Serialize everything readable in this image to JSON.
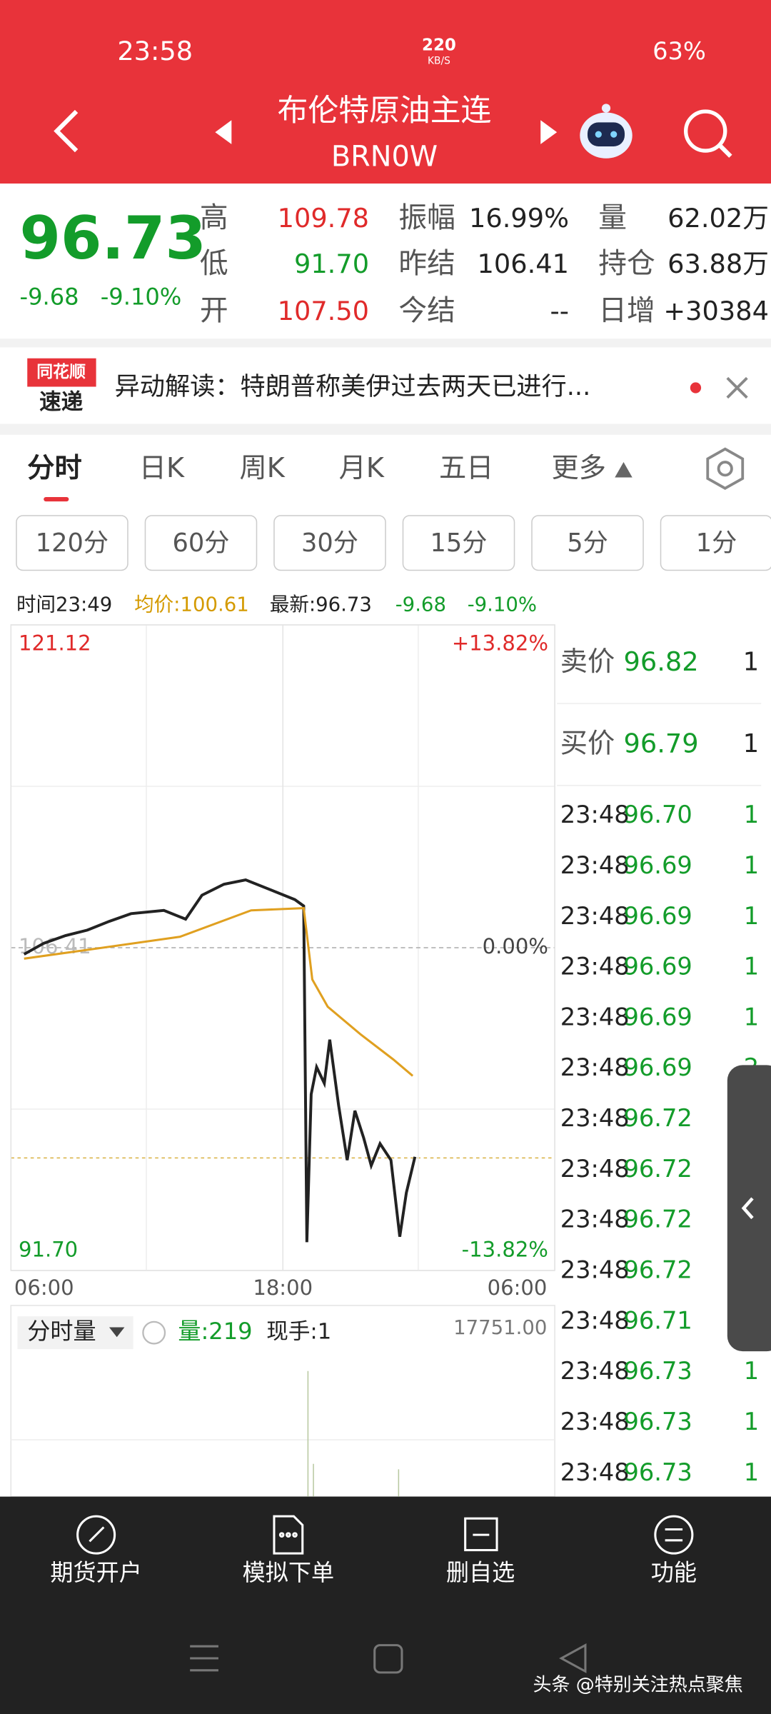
{
  "status": {
    "time": "23:58",
    "speed": "220",
    "speed_unit": "KB/S",
    "battery": "63%"
  },
  "header": {
    "title": "布伦特原油主连",
    "code": "BRN0W"
  },
  "quote": {
    "price": "96.73",
    "change": "-9.68",
    "change_pct": "-9.10%"
  },
  "stats": [
    [
      {
        "label": "高",
        "value": "109.78"
      },
      {
        "label": "振幅",
        "value": "16.99%"
      },
      {
        "label": "量",
        "value": "62.02万"
      }
    ],
    [
      {
        "label": "低",
        "value": "91.70"
      },
      {
        "label": "昨结",
        "value": "106.41"
      },
      {
        "label": "持仓",
        "value": "63.88万"
      }
    ],
    [
      {
        "label": "开",
        "value": "107.50"
      },
      {
        "label": "今结",
        "value": "--"
      },
      {
        "label": "日增",
        "value": "+30384"
      }
    ]
  ],
  "news": {
    "logo_top": "同花顺",
    "logo_bottom": "速递",
    "text": "异动解读：特朗普称美伊过去两天已进行..."
  },
  "tabs": [
    "分时",
    "日K",
    "周K",
    "月K",
    "五日",
    "更多"
  ],
  "periods": [
    "120分",
    "60分",
    "30分",
    "15分",
    "5分",
    "1分"
  ],
  "info_bar": {
    "time": "时间23:49",
    "avg": "均价:100.61",
    "latest": "最新:96.73",
    "change": "-9.68",
    "pct": "-9.10%"
  },
  "chart_data": {
    "type": "line",
    "xlim": [
      0,
      24
    ],
    "xticks": [
      {
        "value": 0,
        "label": "06:00"
      },
      {
        "value": 12,
        "label": "18:00"
      },
      {
        "value": 24,
        "label": "06:00"
      }
    ],
    "ylim": [
      91.7,
      121.12
    ],
    "yticks": [
      {
        "value": 121.12,
        "label": "121.12"
      },
      {
        "value": 106.41,
        "label": "106.41"
      },
      {
        "value": 91.7,
        "label": "91.70"
      }
    ],
    "y2lim": [
      -13.82,
      13.82
    ],
    "y2ticks": [
      {
        "value": 13.82,
        "label": "+13.82%"
      },
      {
        "value": 0,
        "label": "0.00%"
      },
      {
        "value": -13.82,
        "label": "-13.82%"
      }
    ],
    "grid": true,
    "series": [
      {
        "color": "#222222",
        "x": [
          0.58,
          1.45,
          2.41,
          3.37,
          4.34,
          5.3,
          6.75,
          7.71,
          8.43,
          9.4,
          10.36,
          11.33,
          12.53,
          12.92,
          13.06,
          13.25,
          13.49,
          13.83,
          14.07,
          14.46,
          14.84,
          15.18,
          15.57,
          15.9,
          16.29,
          16.77,
          17.16,
          17.45,
          17.83
        ],
        "values": [
          106.11,
          106.61,
          106.96,
          107.21,
          107.61,
          107.96,
          108.11,
          107.71,
          108.8,
          109.3,
          109.5,
          109.1,
          108.6,
          108.31,
          92.99,
          99.73,
          100.97,
          100.23,
          102.22,
          99.23,
          96.73,
          98.98,
          97.73,
          96.48,
          97.48,
          96.73,
          93.24,
          95.24,
          96.88
        ]
      },
      {
        "color": "#e0a020",
        "x": [
          0.58,
          3.37,
          7.47,
          10.6,
          12.92,
          13.3,
          13.98,
          15.42,
          16.87,
          17.73
        ],
        "values": [
          105.91,
          106.31,
          106.91,
          108.11,
          108.21,
          104.96,
          103.72,
          102.47,
          101.32,
          100.57
        ]
      }
    ]
  },
  "volume": {
    "label": "分时量",
    "vol": "量:219",
    "hand": "现手:1",
    "max": "17751.00"
  },
  "book": [
    {
      "label": "卖价",
      "price": "96.82",
      "qty": "1"
    },
    {
      "label": "买价",
      "price": "96.79",
      "qty": "1"
    }
  ],
  "trades": [
    {
      "time": "23:48",
      "price": "96.70",
      "qty": "1"
    },
    {
      "time": "23:48",
      "price": "96.69",
      "qty": "1"
    },
    {
      "time": "23:48",
      "price": "96.69",
      "qty": "1"
    },
    {
      "time": "23:48",
      "price": "96.69",
      "qty": "1"
    },
    {
      "time": "23:48",
      "price": "96.69",
      "qty": "1"
    },
    {
      "time": "23:48",
      "price": "96.69",
      "qty": "2"
    },
    {
      "time": "23:48",
      "price": "96.72"
    },
    {
      "time": "23:48",
      "price": "96.72"
    },
    {
      "time": "23:48",
      "price": "96.72"
    },
    {
      "time": "23:48",
      "price": "96.72"
    },
    {
      "time": "23:48",
      "price": "96.71"
    },
    {
      "time": "23:48",
      "price": "96.73",
      "qty": "1"
    },
    {
      "time": "23:48",
      "price": "96.73",
      "qty": "1"
    },
    {
      "time": "23:48",
      "price": "96.73",
      "qty": "1"
    }
  ],
  "bottom_nav": [
    "期货开户",
    "模拟下单",
    "删自选",
    "功能"
  ],
  "watermark": "头条 @特别关注热点聚焦"
}
